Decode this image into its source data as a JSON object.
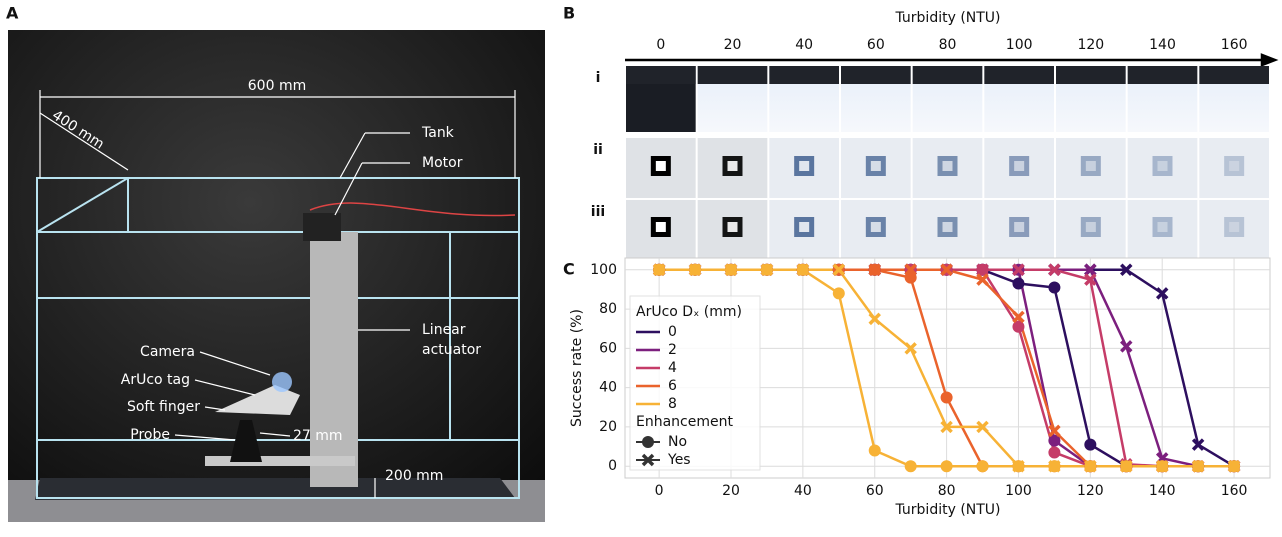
{
  "panel_a": {
    "letter": "A",
    "labels": {
      "width": "600 mm",
      "depth": "400 mm",
      "tank": "Tank",
      "motor": "Motor",
      "actuator_1": "Linear",
      "actuator_2": "actuator",
      "camera": "Camera",
      "tag": "ArUco tag",
      "finger": "Soft finger",
      "probe": "Probe",
      "gap": "27 mm",
      "height": "200 mm"
    }
  },
  "panel_b": {
    "letter": "B",
    "axis_label": "Turbidity (NTU)",
    "ticks": [
      0,
      20,
      40,
      60,
      80,
      100,
      120,
      140,
      160
    ],
    "rows": [
      "i",
      "ii",
      "iii"
    ]
  },
  "panel_c": {
    "letter": "C"
  },
  "chart_data": {
    "type": "line",
    "xlabel": "Turbidity (NTU)",
    "ylabel": "Success rate (%)",
    "x": [
      0,
      10,
      20,
      30,
      40,
      50,
      60,
      70,
      80,
      90,
      100,
      110,
      120,
      130,
      140,
      150,
      160
    ],
    "xlim": [
      -9.5,
      170
    ],
    "xticks": [
      0,
      20,
      40,
      60,
      80,
      100,
      120,
      140,
      160
    ],
    "ylim": [
      -6,
      106
    ],
    "yticks": [
      0,
      20,
      40,
      60,
      80,
      100
    ],
    "grid": true,
    "legend": {
      "title": "ArUco Dₓ (mm)",
      "marker_title": "Enhancement",
      "markers": [
        {
          "label": "No",
          "marker": "circle"
        },
        {
          "label": "Yes",
          "marker": "cross"
        }
      ]
    },
    "series": [
      {
        "name": "0",
        "color": "#2d0f5f",
        "marker": "circle",
        "values": [
          100,
          100,
          100,
          100,
          100,
          100,
          100,
          100,
          100,
          100,
          93,
          91,
          11,
          0,
          0,
          0,
          0
        ]
      },
      {
        "name": "0",
        "color": "#2d0f5f",
        "marker": "cross",
        "values": [
          100,
          100,
          100,
          100,
          100,
          100,
          100,
          100,
          100,
          100,
          100,
          100,
          100,
          100,
          88,
          11,
          0
        ]
      },
      {
        "name": "2",
        "color": "#7c1f7e",
        "marker": "circle",
        "values": [
          100,
          100,
          100,
          100,
          100,
          100,
          100,
          100,
          100,
          100,
          100,
          13,
          0,
          0,
          0,
          0,
          0
        ]
      },
      {
        "name": "2",
        "color": "#7c1f7e",
        "marker": "cross",
        "values": [
          100,
          100,
          100,
          100,
          100,
          100,
          100,
          100,
          100,
          100,
          100,
          100,
          100,
          61,
          4,
          0,
          0
        ]
      },
      {
        "name": "4",
        "color": "#c53c68",
        "marker": "circle",
        "values": [
          100,
          100,
          100,
          100,
          100,
          100,
          100,
          100,
          100,
          100,
          71,
          7,
          0,
          0,
          0,
          0,
          0
        ]
      },
      {
        "name": "4",
        "color": "#c53c68",
        "marker": "cross",
        "values": [
          100,
          100,
          100,
          100,
          100,
          100,
          100,
          100,
          100,
          100,
          100,
          100,
          95,
          1,
          0,
          0,
          0
        ]
      },
      {
        "name": "6",
        "color": "#ea632c",
        "marker": "circle",
        "values": [
          100,
          100,
          100,
          100,
          100,
          100,
          100,
          96,
          35,
          0,
          0,
          0,
          0,
          0,
          0,
          0,
          0
        ]
      },
      {
        "name": "6",
        "color": "#ea632c",
        "marker": "cross",
        "values": [
          100,
          100,
          100,
          100,
          100,
          100,
          100,
          100,
          100,
          95,
          76,
          18,
          0,
          0,
          0,
          0,
          0
        ]
      },
      {
        "name": "8",
        "color": "#f7b236",
        "marker": "circle",
        "values": [
          100,
          100,
          100,
          100,
          100,
          88,
          8,
          0,
          0,
          0,
          0,
          0,
          0,
          0,
          0,
          0,
          0
        ]
      },
      {
        "name": "8",
        "color": "#f7b236",
        "marker": "cross",
        "values": [
          100,
          100,
          100,
          100,
          100,
          100,
          75,
          60,
          20,
          20,
          0,
          0,
          0,
          0,
          0,
          0,
          0
        ]
      }
    ]
  }
}
